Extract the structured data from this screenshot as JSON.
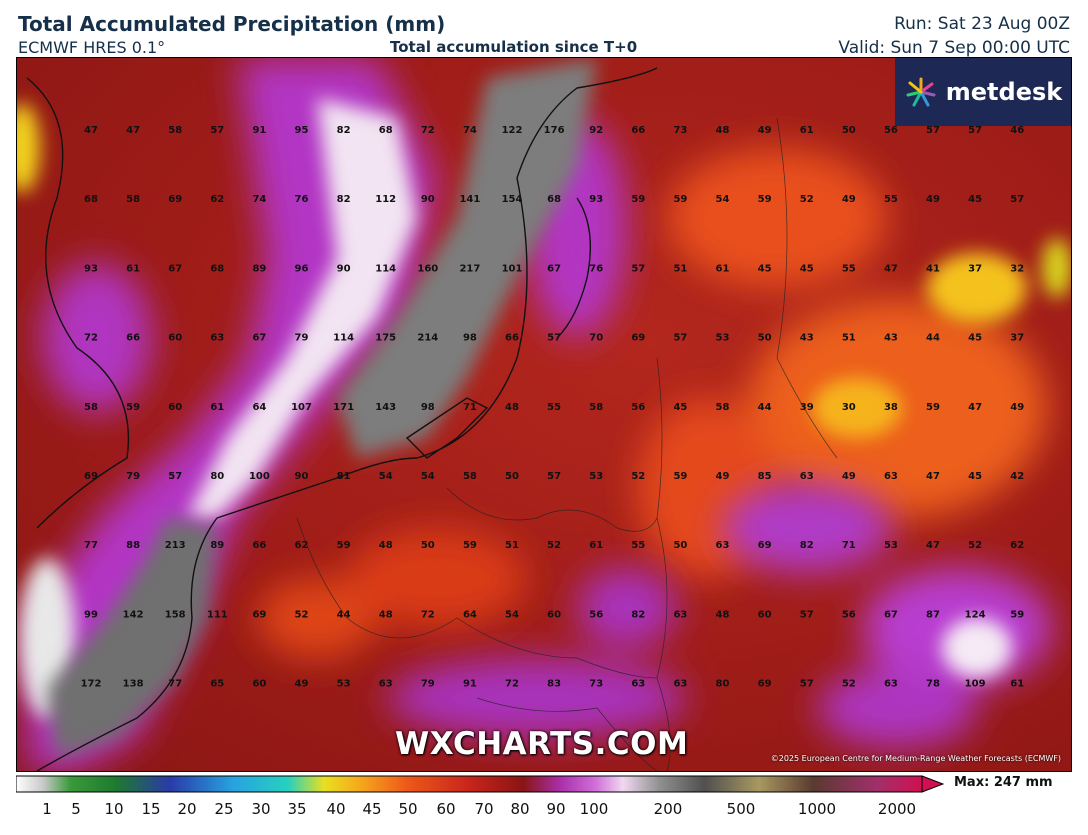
{
  "header": {
    "title": "Total Accumulated Precipitation (mm)",
    "model": "ECMWF HRES 0.1°",
    "subtitle": "Total accumulation since T+0",
    "run": "Run: Sat 23 Aug 00Z",
    "valid": "Valid: Sun 7 Sep 00:00 UTC"
  },
  "branding": {
    "logo_text": "metdesk",
    "watermark": "WXCHARTS.COM",
    "copyright": "©2025 European Centre for Medium-Range Weather Forecasts (ECMWF)"
  },
  "colorbar": {
    "max_label": "Max: 247 mm",
    "ticks": [
      "1",
      "5",
      "10",
      "15",
      "20",
      "25",
      "30",
      "35",
      "40",
      "45",
      "50",
      "60",
      "70",
      "80",
      "90",
      "100",
      "200",
      "500",
      "1000",
      "2000"
    ]
  },
  "grid_values": [
    [
      "47",
      "47",
      "58",
      "57",
      "91",
      "95",
      "82",
      "68",
      "72",
      "74",
      "122",
      "176",
      "92",
      "66",
      "73",
      "48",
      "49",
      "61",
      "50",
      "56",
      "57",
      "57",
      "46"
    ],
    [
      "68",
      "58",
      "69",
      "62",
      "74",
      "76",
      "82",
      "112",
      "90",
      "141",
      "154",
      "68",
      "93",
      "59",
      "59",
      "54",
      "59",
      "52",
      "49",
      "55",
      "49",
      "45",
      "57"
    ],
    [
      "93",
      "61",
      "67",
      "68",
      "89",
      "96",
      "90",
      "114",
      "160",
      "217",
      "101",
      "67",
      "76",
      "57",
      "51",
      "61",
      "45",
      "45",
      "55",
      "47",
      "41",
      "37",
      "32"
    ],
    [
      "72",
      "66",
      "60",
      "63",
      "67",
      "79",
      "114",
      "175",
      "214",
      "98",
      "66",
      "57",
      "70",
      "69",
      "57",
      "53",
      "50",
      "43",
      "51",
      "43",
      "44",
      "45",
      "37"
    ],
    [
      "58",
      "59",
      "60",
      "61",
      "64",
      "107",
      "171",
      "143",
      "98",
      "71",
      "48",
      "55",
      "58",
      "56",
      "45",
      "58",
      "44",
      "39",
      "30",
      "38",
      "59",
      "47",
      "49"
    ],
    [
      "69",
      "79",
      "57",
      "80",
      "100",
      "90",
      "81",
      "54",
      "54",
      "58",
      "50",
      "57",
      "53",
      "52",
      "59",
      "49",
      "85",
      "63",
      "49",
      "63",
      "47",
      "45",
      "42"
    ],
    [
      "77",
      "88",
      "213",
      "89",
      "66",
      "62",
      "59",
      "48",
      "50",
      "59",
      "51",
      "52",
      "61",
      "55",
      "50",
      "63",
      "69",
      "82",
      "71",
      "53",
      "47",
      "52",
      "62"
    ],
    [
      "99",
      "142",
      "158",
      "111",
      "69",
      "52",
      "44",
      "48",
      "72",
      "64",
      "54",
      "60",
      "56",
      "82",
      "63",
      "48",
      "60",
      "57",
      "56",
      "67",
      "87",
      "124",
      "59"
    ],
    [
      "172",
      "138",
      "77",
      "65",
      "60",
      "49",
      "53",
      "63",
      "79",
      "91",
      "72",
      "83",
      "73",
      "63",
      "63",
      "80",
      "69",
      "57",
      "52",
      "63",
      "78",
      "109",
      "61"
    ]
  ],
  "colors": {
    "background_red": "#a8201a",
    "purple": "#b435c8",
    "grey": "#8a8a8a",
    "orange": "#ee6a1c",
    "yellow": "#f4c21e",
    "logo_bg": "#1d2855"
  }
}
